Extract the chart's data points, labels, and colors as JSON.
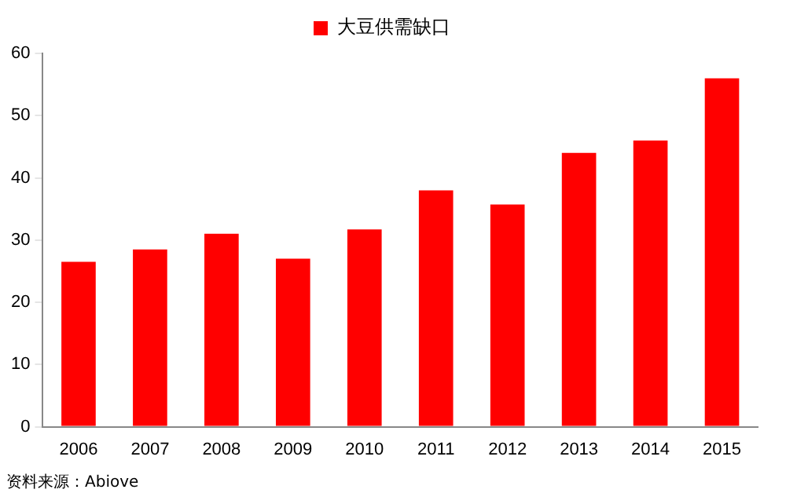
{
  "chart_data": {
    "type": "bar",
    "categories": [
      "2006",
      "2007",
      "2008",
      "2009",
      "2010",
      "2011",
      "2012",
      "2013",
      "2014",
      "2015"
    ],
    "series": [
      {
        "name": "大豆供需缺口",
        "color": "#ff0000",
        "values": [
          26.5,
          28.5,
          31,
          27,
          31.7,
          38,
          35.7,
          44,
          46,
          56
        ]
      }
    ],
    "ylim": [
      0,
      60
    ],
    "yticks": [
      0,
      10,
      20,
      30,
      40,
      50,
      60
    ],
    "grid": false,
    "legend": "top",
    "annotations": [
      "资料来源：Abiove"
    ]
  }
}
